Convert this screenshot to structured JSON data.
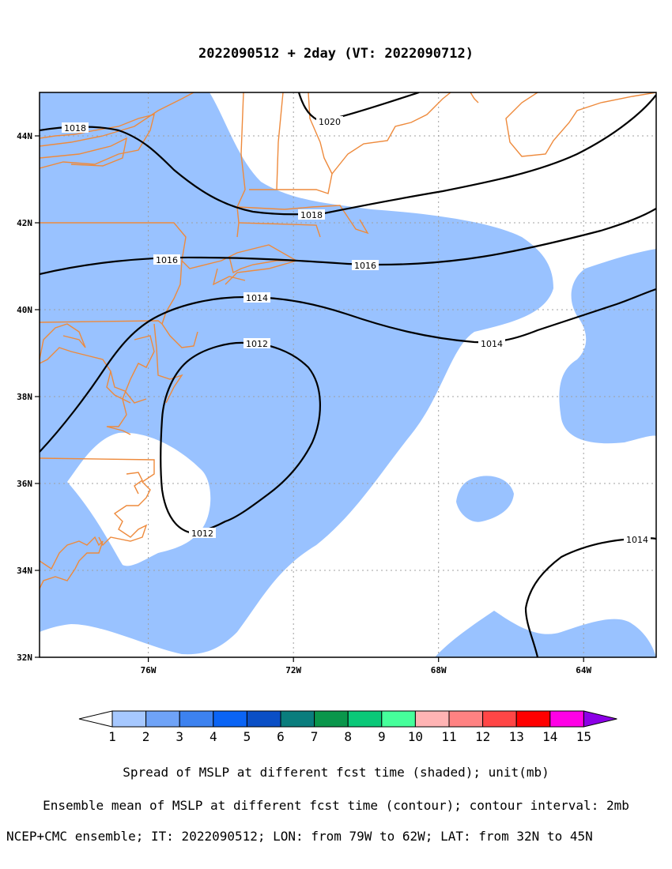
{
  "title": "2022090512 + 2day (VT: 2022090712)",
  "map": {
    "lon_range": [
      -79,
      -62
    ],
    "lat_range": [
      32,
      45
    ],
    "x_ticks": [
      "76W",
      "72W",
      "68W",
      "64W"
    ],
    "y_ticks": [
      "32N",
      "34N",
      "36N",
      "38N",
      "40N",
      "42N",
      "44N"
    ],
    "colors": {
      "shading_1_2": "#99c2ff",
      "coastline": "#ee8a3c",
      "contour": "#000000",
      "grid": "#a0a0a0"
    }
  },
  "contours": {
    "labels": [
      "1020",
      "1018",
      "1018",
      "1016",
      "1016",
      "1014",
      "1014",
      "1012",
      "1012",
      "1014"
    ]
  },
  "colorbar": {
    "labels": [
      "1",
      "2",
      "3",
      "4",
      "5",
      "6",
      "7",
      "8",
      "9",
      "10",
      "11",
      "12",
      "13",
      "14",
      "15"
    ],
    "colors": [
      "#a6c8ff",
      "#6fa3f7",
      "#3d82f0",
      "#0a64f5",
      "#0a4fc6",
      "#0a7d7d",
      "#0a964b",
      "#0ac878",
      "#46ff9b",
      "#ffb4b4",
      "#ff8282",
      "#ff4646",
      "#ff0000",
      "#ff00e6",
      "#8c00e6"
    ]
  },
  "captions": {
    "line1": "Spread of MSLP at different fcst time (shaded); unit(mb)",
    "line2": "Ensemble mean of MSLP at different fcst time (contour); contour interval: 2mb",
    "line3": "NCEP+CMC ensemble; IT: 2022090512; LON: from 79W to 62W; LAT: from 32N to 45N"
  }
}
